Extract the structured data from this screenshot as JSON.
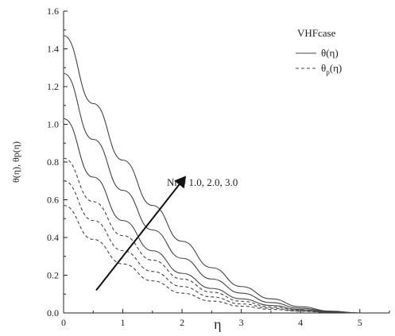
{
  "chart_data": {
    "type": "line",
    "xlabel": "η",
    "ylabel": "θ(η), θp(η)",
    "xlim": [
      0,
      5.5
    ],
    "ylim": [
      0,
      1.6
    ],
    "xticks": [
      "0",
      "1",
      "2",
      "3",
      "4",
      "5"
    ],
    "yticks": [
      "0.0",
      "0.2",
      "0.4",
      "0.6",
      "0.8",
      "1.0",
      "1.2",
      "1.4",
      "1.6"
    ],
    "legend": {
      "title": "VHFcase",
      "position": "top-right",
      "entries": [
        {
          "label_main": "θ(η)",
          "label_sub": "",
          "label_tail": "",
          "style": "solid"
        },
        {
          "label_main": "θ",
          "label_sub": "p",
          "label_tail": "(η)",
          "style": "dashed"
        }
      ]
    },
    "annotation": {
      "text": "Nr = 1.0, 2.0, 3.0",
      "arrow_from": [
        0.55,
        0.12
      ],
      "arrow_to": [
        2.05,
        0.72
      ]
    },
    "x": [
      0,
      0.5,
      1,
      1.5,
      2,
      2.5,
      3,
      3.5,
      4,
      4.5,
      5
    ],
    "series": [
      {
        "group": "θ(η)",
        "style": "solid",
        "values": [
          1.03,
          0.72,
          0.49,
          0.33,
          0.21,
          0.13,
          0.075,
          0.04,
          0.018,
          0.006,
          0.0
        ]
      },
      {
        "group": "θ(η)",
        "style": "solid",
        "values": [
          1.27,
          0.92,
          0.65,
          0.44,
          0.29,
          0.18,
          0.105,
          0.055,
          0.025,
          0.008,
          0.0
        ]
      },
      {
        "group": "θ(η)",
        "style": "solid",
        "values": [
          1.47,
          1.11,
          0.81,
          0.57,
          0.38,
          0.24,
          0.14,
          0.075,
          0.033,
          0.01,
          0.0
        ]
      },
      {
        "group": "θp(η)",
        "style": "dashed",
        "values": [
          0.57,
          0.39,
          0.26,
          0.17,
          0.105,
          0.063,
          0.036,
          0.019,
          0.009,
          0.003,
          0.0
        ]
      },
      {
        "group": "θp(η)",
        "style": "dashed",
        "values": [
          0.7,
          0.49,
          0.33,
          0.22,
          0.14,
          0.085,
          0.048,
          0.025,
          0.011,
          0.004,
          0.0
        ]
      },
      {
        "group": "θp(η)",
        "style": "dashed",
        "values": [
          0.82,
          0.59,
          0.41,
          0.28,
          0.18,
          0.11,
          0.062,
          0.032,
          0.014,
          0.005,
          0.0
        ]
      }
    ]
  }
}
